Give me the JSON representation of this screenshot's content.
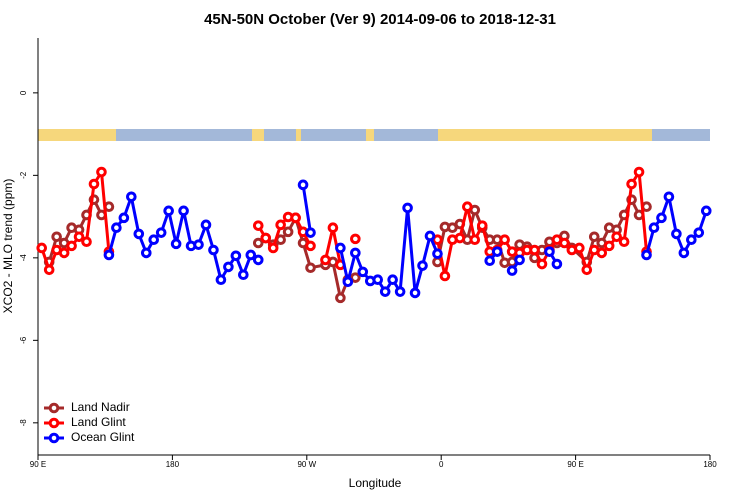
{
  "chart_data": {
    "type": "line",
    "title": "45N-50N October (Ver 9)   2014-09-06 to 2018-12-31",
    "x_label": "Longitude",
    "y_label": "XCO2 - MLO trend (ppm)",
    "xlim": [
      90,
      540
    ],
    "xticks": [
      {
        "value": 90,
        "label": "90 E"
      },
      180,
      {
        "value": 270,
        "label": "90 W"
      },
      {
        "value": 360,
        "label": "0"
      },
      {
        "value": 450,
        "label": "90 E"
      },
      180
    ],
    "ylim": [
      -8.78,
      1.33
    ],
    "yticks": [
      0,
      -2,
      -4,
      -6,
      -8
    ],
    "legend": "bottom-left",
    "series": [
      {
        "name": "Land Nadir",
        "color": "#a52a2a",
        "x": [
          97.5,
          102.5,
          107.5,
          112.5,
          117.5,
          122.5,
          127.5,
          132.5,
          137.5,
          null,
          237.5,
          242.5,
          247.5,
          252.5,
          257.5,
          262.5,
          267.5,
          272.5,
          282.5,
          287.5,
          292.5,
          297.5,
          302.5,
          null,
          357.5,
          362.5,
          367.5,
          372.5,
          377.5,
          382.5,
          387.5,
          392.5,
          397.5,
          402.5,
          407.5,
          412.5,
          417.5,
          422.5,
          427.5,
          432.5,
          437.5,
          442.5,
          447.5,
          457.5,
          462.5,
          467.5,
          472.5,
          477.5,
          482.5,
          487.5,
          492.5,
          497.5
        ],
        "values": [
          -4.1,
          -3.49,
          -3.64,
          -3.27,
          -3.32,
          -2.96,
          -2.59,
          -2.96,
          -2.76,
          null,
          -3.64,
          -3.52,
          -3.68,
          -3.56,
          -3.37,
          -3.03,
          -3.64,
          -4.24,
          -4.17,
          -4.1,
          -4.97,
          -4.53,
          -4.48,
          null,
          -4.1,
          -3.25,
          -3.27,
          -3.18,
          -3.56,
          -2.84,
          -3.27,
          -3.56,
          -3.56,
          -4.12,
          -4.1,
          -3.68,
          -3.73,
          -4.0,
          -3.81,
          -3.61,
          -3.64,
          -3.47,
          -3.76,
          -4.1,
          -3.49,
          -3.64,
          -3.27,
          -3.32,
          -2.96,
          -2.59,
          -2.96,
          -2.76
        ]
      },
      {
        "name": "Land Glint",
        "color": "#ff0000",
        "x": [
          92.5,
          97.5,
          102.5,
          107.5,
          112.5,
          117.5,
          122.5,
          127.5,
          132.5,
          137.5,
          null,
          237.5,
          242.5,
          247.5,
          252.5,
          257.5,
          262.5,
          267.5,
          272.5,
          null,
          282.5,
          287.5,
          292.5,
          null,
          302.5,
          null,
          357.5,
          362.5,
          367.5,
          372.5,
          377.5,
          382.5,
          387.5,
          392.5,
          397.5,
          402.5,
          407.5,
          412.5,
          417.5,
          422.5,
          427.5,
          432.5,
          437.5,
          442.5,
          447.5,
          452.5,
          457.5,
          462.5,
          467.5,
          472.5,
          477.5,
          482.5,
          487.5,
          492.5,
          497.5
        ],
        "values": [
          -3.76,
          -4.29,
          -3.81,
          -3.88,
          -3.71,
          -3.49,
          -3.61,
          -2.21,
          -1.92,
          -3.85,
          null,
          -3.22,
          -3.52,
          -3.76,
          -3.2,
          -3.01,
          -3.03,
          -3.37,
          -3.71,
          null,
          -4.05,
          -3.27,
          -4.17,
          null,
          -3.54,
          null,
          -3.56,
          -4.44,
          -3.56,
          -3.52,
          -2.76,
          -3.56,
          -3.22,
          -3.85,
          -3.81,
          -3.56,
          -3.85,
          -3.88,
          -3.81,
          -3.81,
          -4.15,
          -3.81,
          -3.56,
          -3.64,
          -3.81,
          -3.76,
          -4.29,
          -3.81,
          -3.88,
          -3.71,
          -3.49,
          -3.61,
          -2.21,
          -1.92,
          -3.85
        ]
      },
      {
        "name": "Ocean Glint",
        "color": "#0000ff",
        "x": [
          137.5,
          142.5,
          147.5,
          152.5,
          157.5,
          162.5,
          167.5,
          172.5,
          177.5,
          182.5,
          187.5,
          192.5,
          197.5,
          202.5,
          207.5,
          212.5,
          217.5,
          222.5,
          227.5,
          232.5,
          237.5,
          null,
          267.5,
          272.5,
          null,
          292.5,
          297.5,
          302.5,
          307.5,
          312.5,
          317.5,
          322.5,
          327.5,
          332.5,
          337.5,
          342.5,
          347.5,
          352.5,
          357.5,
          null,
          392.5,
          397.5,
          null,
          407.5,
          412.5,
          null,
          432.5,
          437.5,
          null,
          497.5,
          502.5,
          507.5,
          512.5,
          517.5,
          522.5,
          527.5,
          532.5,
          537.5
        ],
        "values": [
          -3.93,
          -3.27,
          -3.03,
          -2.52,
          -3.42,
          -3.88,
          -3.56,
          -3.39,
          -2.86,
          -3.66,
          -2.86,
          -3.71,
          -3.68,
          -3.2,
          -3.81,
          -4.53,
          -4.22,
          -3.95,
          -4.41,
          -3.93,
          -4.05,
          null,
          -2.23,
          -3.39,
          null,
          -3.76,
          -4.58,
          -3.88,
          -4.34,
          -4.56,
          -4.53,
          -4.82,
          -4.53,
          -4.82,
          -2.79,
          -4.85,
          -4.19,
          -3.47,
          -3.9,
          null,
          -4.07,
          -3.85,
          null,
          -4.31,
          -4.05,
          null,
          -3.85,
          -4.15,
          null,
          -3.93,
          -3.27,
          -3.03,
          -2.52,
          -3.42,
          -3.88,
          -3.56,
          -3.39,
          -2.86
        ]
      }
    ]
  }
}
